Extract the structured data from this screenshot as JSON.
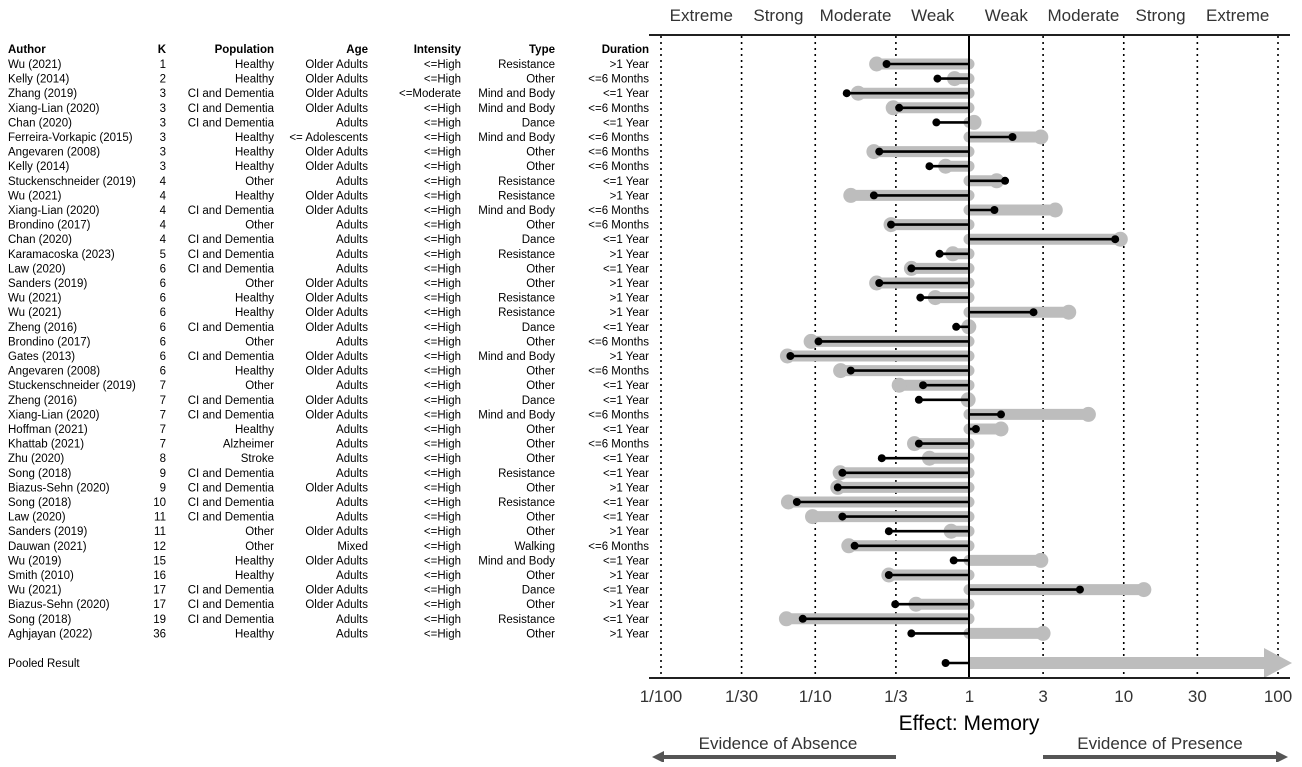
{
  "chart_data": {
    "type": "forest",
    "xlabel": "Effect: Memory",
    "x_scale": "log",
    "xlim": [
      0.01,
      100
    ],
    "x_ticks": [
      0.01,
      0.0333,
      0.1,
      0.3333,
      1,
      3,
      10,
      30,
      100
    ],
    "x_tick_labels": [
      "1/100",
      "1/30",
      "1/10",
      "1/3",
      "1",
      "3",
      "10",
      "30",
      "100"
    ],
    "reference_lines": [
      0.01,
      0.0333,
      0.1,
      0.3333,
      3,
      10,
      30,
      100
    ],
    "band_labels": [
      "Extreme",
      "Strong",
      "Moderate",
      "Weak",
      "Weak",
      "Moderate",
      "Strong",
      "Extreme"
    ],
    "evidence_labels": {
      "left": "Evidence of Absence",
      "right": "Evidence of Presence"
    },
    "columns": [
      "Author",
      "K",
      "Population",
      "Age",
      "Intensity",
      "Type",
      "Duration"
    ],
    "rows": [
      {
        "author": "Wu (2021)",
        "k": "1",
        "population": "Healthy",
        "age": "Older Adults",
        "intensity": "<=High",
        "type": "Resistance",
        "duration": ">1 Year",
        "black": 0.29,
        "gray": 0.25
      },
      {
        "author": "Kelly (2014)",
        "k": "2",
        "population": "Healthy",
        "age": "Older Adults",
        "intensity": "<=High",
        "type": "Other",
        "duration": "<=6 Months",
        "black": 0.62,
        "gray": 0.8
      },
      {
        "author": "Zhang (2019)",
        "k": "3",
        "population": "CI and Dementia",
        "age": "Older Adults",
        "intensity": "<=Moderate",
        "type": "Mind and Body",
        "duration": "<=1 Year",
        "black": 0.16,
        "gray": 0.19
      },
      {
        "author": "Xiang-Lian (2020)",
        "k": "3",
        "population": "CI and Dementia",
        "age": "Older Adults",
        "intensity": "<=High",
        "type": "Mind and Body",
        "duration": "<=6 Months",
        "black": 0.35,
        "gray": 0.32
      },
      {
        "author": "Chan (2020)",
        "k": "3",
        "population": "CI and Dementia",
        "age": "Adults",
        "intensity": "<=High",
        "type": "Dance",
        "duration": "<=1 Year",
        "black": 0.61,
        "gray": 1.07
      },
      {
        "author": "Ferreira-Vorkapic (2015)",
        "k": "3",
        "population": "Healthy",
        "age": "<= Adolescents",
        "intensity": "<=High",
        "type": "Mind and Body",
        "duration": "<=6 Months",
        "black": 1.9,
        "gray": 2.9
      },
      {
        "author": "Angevaren (2008)",
        "k": "3",
        "population": "Healthy",
        "age": "Older Adults",
        "intensity": "<=High",
        "type": "Other",
        "duration": "<=6 Months",
        "black": 0.26,
        "gray": 0.24
      },
      {
        "author": "Kelly (2014)",
        "k": "3",
        "population": "Healthy",
        "age": "Older Adults",
        "intensity": "<=High",
        "type": "Other",
        "duration": "<=6 Months",
        "black": 0.55,
        "gray": 0.7
      },
      {
        "author": "Stuckenschneider (2019)",
        "k": "4",
        "population": "Other",
        "age": "Adults",
        "intensity": "<=High",
        "type": "Resistance",
        "duration": "<=1 Year",
        "black": 1.7,
        "gray": 1.5
      },
      {
        "author": "Wu (2021)",
        "k": "4",
        "population": "Healthy",
        "age": "Older Adults",
        "intensity": "<=High",
        "type": "Resistance",
        "duration": ">1 Year",
        "black": 0.24,
        "gray": 0.17
      },
      {
        "author": "Xiang-Lian (2020)",
        "k": "4",
        "population": "CI and Dementia",
        "age": "Older Adults",
        "intensity": "<=High",
        "type": "Mind and Body",
        "duration": "<=6 Months",
        "black": 1.45,
        "gray": 3.6
      },
      {
        "author": "Brondino (2017)",
        "k": "4",
        "population": "Other",
        "age": "Adults",
        "intensity": "<=High",
        "type": "Other",
        "duration": "<=6 Months",
        "black": 0.31,
        "gray": 0.31
      },
      {
        "author": "Chan (2020)",
        "k": "4",
        "population": "CI and Dementia",
        "age": "Adults",
        "intensity": "<=High",
        "type": "Dance",
        "duration": "<=1 Year",
        "black": 8.8,
        "gray": 9.5
      },
      {
        "author": "Karamacoska (2023)",
        "k": "5",
        "population": "CI and Dementia",
        "age": "Adults",
        "intensity": "<=High",
        "type": "Resistance",
        "duration": ">1 Year",
        "black": 0.64,
        "gray": 0.78
      },
      {
        "author": "Law (2020)",
        "k": "6",
        "population": "CI and Dementia",
        "age": "Adults",
        "intensity": "<=High",
        "type": "Other",
        "duration": "<=1 Year",
        "black": 0.42,
        "gray": 0.42
      },
      {
        "author": "Sanders (2019)",
        "k": "6",
        "population": "Other",
        "age": "Older Adults",
        "intensity": "<=High",
        "type": "Other",
        "duration": ">1 Year",
        "black": 0.26,
        "gray": 0.25
      },
      {
        "author": "Wu (2021)",
        "k": "6",
        "population": "Healthy",
        "age": "Older Adults",
        "intensity": "<=High",
        "type": "Resistance",
        "duration": ">1 Year",
        "black": 0.48,
        "gray": 0.6
      },
      {
        "author": "Wu (2021)",
        "k": "6",
        "population": "Healthy",
        "age": "Older Adults",
        "intensity": "<=High",
        "type": "Resistance",
        "duration": ">1 Year",
        "black": 2.6,
        "gray": 4.4
      },
      {
        "author": "Zheng (2016)",
        "k": "6",
        "population": "CI and Dementia",
        "age": "Older Adults",
        "intensity": "<=High",
        "type": "Dance",
        "duration": "<=1 Year",
        "black": 0.82,
        "gray": 0.99
      },
      {
        "author": "Brondino (2017)",
        "k": "6",
        "population": "Other",
        "age": "Adults",
        "intensity": "<=High",
        "type": "Other",
        "duration": "<=6 Months",
        "black": 0.105,
        "gray": 0.094
      },
      {
        "author": "Gates (2013)",
        "k": "6",
        "population": "CI and Dementia",
        "age": "Older Adults",
        "intensity": "<=High",
        "type": "Mind and Body",
        "duration": ">1 Year",
        "black": 0.069,
        "gray": 0.066
      },
      {
        "author": "Angevaren (2008)",
        "k": "6",
        "population": "Healthy",
        "age": "Older Adults",
        "intensity": "<=High",
        "type": "Other",
        "duration": "<=6 Months",
        "black": 0.17,
        "gray": 0.146
      },
      {
        "author": "Stuckenschneider (2019)",
        "k": "7",
        "population": "Other",
        "age": "Adults",
        "intensity": "<=High",
        "type": "Other",
        "duration": "<=1 Year",
        "black": 0.5,
        "gray": 0.35
      },
      {
        "author": "Zheng (2016)",
        "k": "7",
        "population": "CI and Dementia",
        "age": "Older Adults",
        "intensity": "<=High",
        "type": "Dance",
        "duration": "<=1 Year",
        "black": 0.47,
        "gray": 0.98
      },
      {
        "author": "Xiang-Lian (2020)",
        "k": "7",
        "population": "CI and Dementia",
        "age": "Older Adults",
        "intensity": "<=High",
        "type": "Mind and Body",
        "duration": "<=6 Months",
        "black": 1.6,
        "gray": 5.9
      },
      {
        "author": "Hoffman (2021)",
        "k": "7",
        "population": "Healthy",
        "age": "Adults",
        "intensity": "<=High",
        "type": "Other",
        "duration": "<=1 Year",
        "black": 1.1,
        "gray": 1.6
      },
      {
        "author": "Khattab (2021)",
        "k": "7",
        "population": "Alzheimer",
        "age": "Adults",
        "intensity": "<=High",
        "type": "Other",
        "duration": "<=6 Months",
        "black": 0.47,
        "gray": 0.44
      },
      {
        "author": "Zhu (2020)",
        "k": "8",
        "population": "Stroke",
        "age": "Adults",
        "intensity": "<=High",
        "type": "Other",
        "duration": "<=1 Year",
        "black": 0.27,
        "gray": 0.55
      },
      {
        "author": "Song (2018)",
        "k": "9",
        "population": "CI and Dementia",
        "age": "Adults",
        "intensity": "<=High",
        "type": "Resistance",
        "duration": "<=1 Year",
        "black": 0.15,
        "gray": 0.145
      },
      {
        "author": "Biazus-Sehn (2020)",
        "k": "9",
        "population": "CI and Dementia",
        "age": "Older Adults",
        "intensity": "<=High",
        "type": "Other",
        "duration": ">1 Year",
        "black": 0.14,
        "gray": 0.14
      },
      {
        "author": "Song (2018)",
        "k": "10",
        "population": "CI and Dementia",
        "age": "Adults",
        "intensity": "<=High",
        "type": "Resistance",
        "duration": "<=1 Year",
        "black": 0.076,
        "gray": 0.067
      },
      {
        "author": "Law (2020)",
        "k": "11",
        "population": "CI and Dementia",
        "age": "Adults",
        "intensity": "<=High",
        "type": "Other",
        "duration": "<=1 Year",
        "black": 0.15,
        "gray": 0.096
      },
      {
        "author": "Sanders (2019)",
        "k": "11",
        "population": "Other",
        "age": "Older Adults",
        "intensity": "<=High",
        "type": "Other",
        "duration": ">1 Year",
        "black": 0.3,
        "gray": 0.76
      },
      {
        "author": "Dauwan (2021)",
        "k": "12",
        "population": "Other",
        "age": "Mixed",
        "intensity": "<=High",
        "type": "Walking",
        "duration": "<=6 Months",
        "black": 0.18,
        "gray": 0.165
      },
      {
        "author": "Wu (2019)",
        "k": "15",
        "population": "Healthy",
        "age": "Older Adults",
        "intensity": "<=High",
        "type": "Mind and Body",
        "duration": "<=1 Year",
        "black": 0.79,
        "gray": 2.9
      },
      {
        "author": "Smith (2010)",
        "k": "16",
        "population": "Healthy",
        "age": "Adults",
        "intensity": "<=High",
        "type": "Other",
        "duration": ">1 Year",
        "black": 0.3,
        "gray": 0.3
      },
      {
        "author": "Wu (2021)",
        "k": "17",
        "population": "CI and Dementia",
        "age": "Older Adults",
        "intensity": "<=High",
        "type": "Dance",
        "duration": "<=1 Year",
        "black": 5.2,
        "gray": 13.5
      },
      {
        "author": "Biazus-Sehn (2020)",
        "k": "17",
        "population": "CI and Dementia",
        "age": "Older Adults",
        "intensity": "<=High",
        "type": "Other",
        "duration": ">1 Year",
        "black": 0.33,
        "gray": 0.45
      },
      {
        "author": "Song (2018)",
        "k": "19",
        "population": "CI and Dementia",
        "age": "Adults",
        "intensity": "<=High",
        "type": "Resistance",
        "duration": "<=1 Year",
        "black": 0.083,
        "gray": 0.065
      },
      {
        "author": "Aghjayan (2022)",
        "k": "36",
        "population": "Healthy",
        "age": "Adults",
        "intensity": "<=High",
        "type": "Other",
        "duration": ">1 Year",
        "black": 0.42,
        "gray": 3.0
      }
    ],
    "pooled": {
      "label": "Pooled Result",
      "black": 0.7,
      "gray_arrow": true
    }
  }
}
